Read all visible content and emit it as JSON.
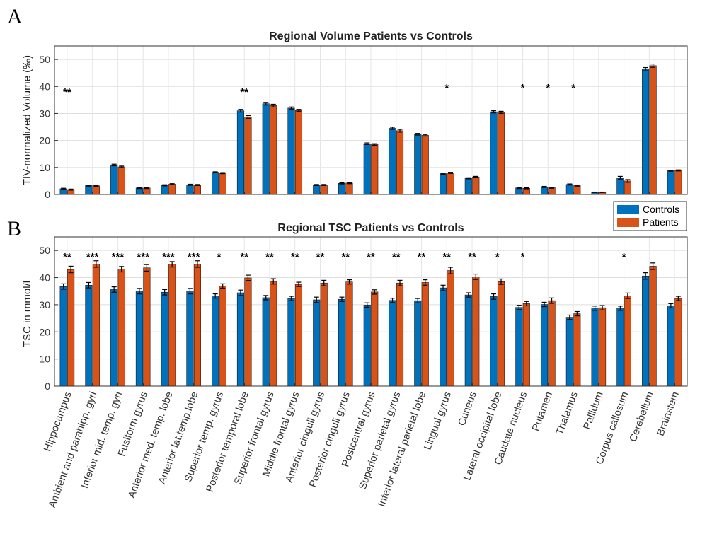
{
  "colors": {
    "controls": "#0072BD",
    "patients": "#D95319"
  },
  "categories": [
    "Hippocampus",
    "Ambient and parahipp. gyri",
    "Inferior mid. temp. gyri",
    "Fusiform gyrus",
    "Anterior med. temp. lobe",
    "Anterior lat.temp.lobe",
    "Superior temp. gyrus",
    "Posterior temporal lobe",
    "Superior frontal gyrus",
    "Middle frontal gyrus",
    "Anterior cinguli gyrus",
    "Posterior cinguli gyrus",
    "Postcentral gyrus",
    "Superior parietal gyrus",
    "Inferior lateral parietal lobe",
    "Lingual gyrus",
    "Cuneus",
    "Lateral occipital lobe",
    "Caudate nucleus",
    "Putamen",
    "Thalamus",
    "Pallidum",
    "Corpus callosum",
    "Cerebellum",
    "Brainstem"
  ],
  "legend": {
    "controls": "Controls",
    "patients": "Patients",
    "position": "top-right of panel B"
  },
  "chart_data": [
    {
      "panel": "A",
      "type": "bar",
      "title": "Regional Volume Patients vs Controls",
      "xlabel": "",
      "ylabel": "TIV-normalized Volume (‰)",
      "ylim": [
        0,
        55
      ],
      "yticks": [
        0,
        10,
        20,
        30,
        40,
        50
      ],
      "grid": true,
      "series": [
        {
          "name": "Controls",
          "values": [
            2.1,
            3.3,
            10.9,
            2.4,
            3.4,
            3.6,
            8.2,
            31.0,
            33.6,
            32.0,
            3.5,
            4.1,
            18.8,
            24.5,
            22.3,
            7.7,
            6.0,
            30.6,
            2.4,
            2.8,
            3.7,
            0.8,
            6.2,
            46.4,
            8.8
          ],
          "errors": [
            0.2,
            0.2,
            0.3,
            0.2,
            0.2,
            0.2,
            0.2,
            0.5,
            0.5,
            0.4,
            0.2,
            0.2,
            0.3,
            0.4,
            0.3,
            0.2,
            0.2,
            0.4,
            0.2,
            0.2,
            0.2,
            0.1,
            0.5,
            0.6,
            0.2
          ]
        },
        {
          "name": "Patients",
          "values": [
            1.8,
            3.2,
            10.2,
            2.4,
            3.8,
            3.5,
            7.9,
            28.7,
            32.9,
            31.1,
            3.5,
            4.2,
            18.5,
            23.6,
            21.9,
            8.0,
            6.5,
            30.4,
            2.3,
            2.5,
            3.3,
            0.8,
            5.0,
            47.7,
            8.9
          ],
          "errors": [
            0.2,
            0.2,
            0.3,
            0.2,
            0.2,
            0.2,
            0.2,
            0.5,
            0.5,
            0.4,
            0.2,
            0.2,
            0.3,
            0.5,
            0.3,
            0.2,
            0.2,
            0.4,
            0.2,
            0.2,
            0.2,
            0.1,
            0.5,
            0.6,
            0.2
          ]
        }
      ],
      "significance": [
        "**",
        "",
        "",
        "",
        "",
        "",
        "",
        "**",
        "",
        "",
        "",
        "",
        "",
        "",
        "",
        "*",
        "",
        "",
        "*",
        "*",
        "*",
        "",
        "",
        "",
        ""
      ]
    },
    {
      "panel": "B",
      "type": "bar",
      "title": "Regional TSC Patients vs Controls",
      "xlabel": "",
      "ylabel": "TSC in mmol/l",
      "ylim": [
        0,
        55
      ],
      "yticks": [
        0,
        10,
        20,
        30,
        40,
        50
      ],
      "grid": true,
      "series": [
        {
          "name": "Controls",
          "values": [
            36.7,
            37.2,
            35.6,
            35.0,
            34.6,
            35.0,
            33.2,
            34.4,
            32.6,
            32.3,
            31.8,
            32.0,
            29.9,
            31.6,
            31.5,
            36.2,
            33.6,
            33.0,
            29.0,
            30.1,
            25.4,
            28.7,
            28.7,
            40.6,
            29.6
          ],
          "errors": [
            1.0,
            1.0,
            1.0,
            1.0,
            1.0,
            1.0,
            0.8,
            1.0,
            0.8,
            0.8,
            1.0,
            0.8,
            0.8,
            0.8,
            0.8,
            1.0,
            0.8,
            1.0,
            0.8,
            0.8,
            0.8,
            0.8,
            0.8,
            1.2,
            0.8
          ]
        },
        {
          "name": "Patients",
          "values": [
            43.0,
            45.0,
            43.1,
            43.6,
            44.9,
            45.0,
            36.9,
            39.9,
            38.6,
            37.5,
            38.0,
            38.4,
            34.7,
            38.0,
            38.2,
            42.6,
            40.3,
            38.5,
            30.4,
            31.5,
            26.7,
            28.9,
            33.3,
            44.2,
            32.3
          ],
          "errors": [
            1.2,
            1.2,
            1.0,
            1.2,
            1.0,
            1.2,
            0.8,
            1.0,
            1.0,
            0.8,
            1.0,
            0.8,
            0.8,
            1.0,
            1.0,
            1.2,
            1.0,
            1.0,
            0.8,
            1.0,
            0.8,
            0.8,
            1.0,
            1.2,
            0.8
          ]
        }
      ],
      "significance": [
        "**",
        "***",
        "***",
        "***",
        "***",
        "***",
        "*",
        "**",
        "**",
        "**",
        "**",
        "**",
        "**",
        "**",
        "**",
        "**",
        "**",
        "*",
        "*",
        "",
        "",
        "",
        "*",
        "",
        ""
      ]
    }
  ],
  "panel_letters": [
    "A",
    "B"
  ]
}
